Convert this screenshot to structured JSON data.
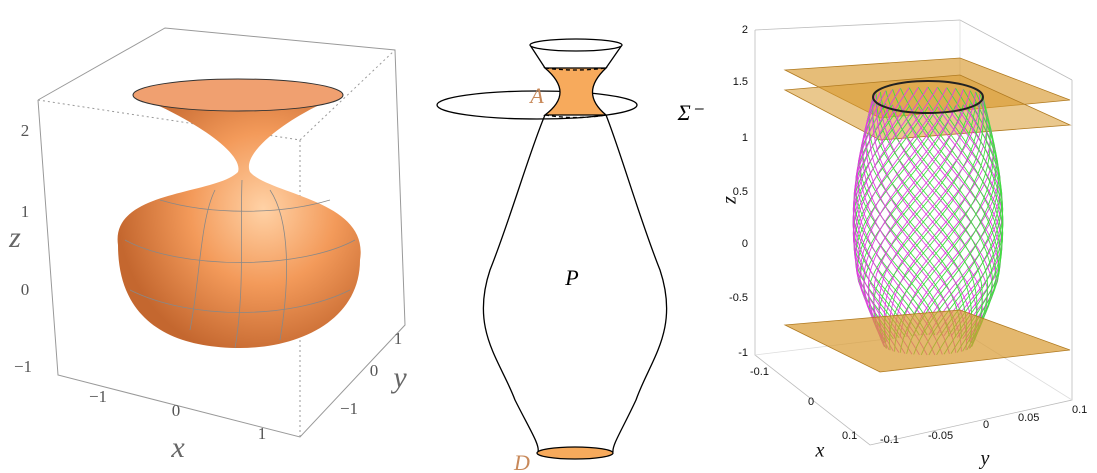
{
  "panels": [
    {
      "axes": {
        "x": {
          "label": "x",
          "ticks": [
            "−1",
            "0",
            "1"
          ]
        },
        "y": {
          "label": "y",
          "ticks": [
            "1",
            "0",
            "−1"
          ]
        },
        "z": {
          "label": "z",
          "ticks": [
            "2",
            "1",
            "0",
            "−1"
          ]
        }
      }
    },
    {
      "labels": {
        "A": "A",
        "sigma": "Σ⁻",
        "P": "P",
        "D": "D"
      }
    },
    {
      "axes": {
        "z": {
          "label": "z",
          "ticks": [
            "2",
            "1.5",
            "1",
            "0.5",
            "0",
            "-0.5",
            "-1"
          ]
        },
        "x": {
          "label": "x",
          "ticks": [
            "-0.1",
            "0",
            "0.1"
          ]
        },
        "y": {
          "label": "y",
          "ticks": [
            "-0.1",
            "-0.05",
            "0",
            "0.05",
            "0.1"
          ]
        }
      }
    }
  ]
}
